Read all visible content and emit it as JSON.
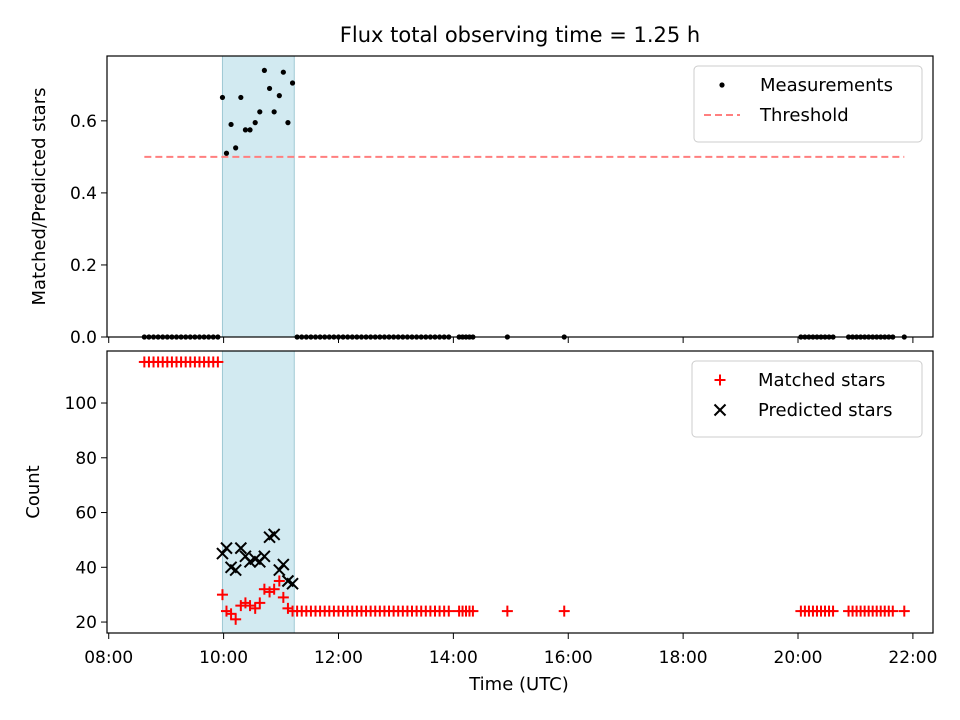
{
  "chart_data": {
    "title": "Flux total observing time = 1.25 h",
    "xlabel": "Time (UTC)",
    "x_ticks": [
      "08:00",
      "10:00",
      "12:00",
      "14:00",
      "16:00",
      "18:00",
      "20:00",
      "22:00"
    ],
    "x_tick_values_h": [
      8,
      10,
      12,
      14,
      16,
      18,
      20,
      22
    ],
    "xlim_h": [
      7.97,
      22.35
    ],
    "observing_window_h": [
      9.98,
      11.23
    ],
    "colors": {
      "window": "#add8e6",
      "threshold": "#ff7f7f",
      "matched": "#ff0000",
      "predicted": "#000000",
      "measurements": "#000000"
    },
    "panels": [
      {
        "type": "scatter",
        "ylabel": "Matched/Predicted stars",
        "ylim": [
          0,
          0.78
        ],
        "y_ticks": [
          "0.0",
          "0.2",
          "0.4",
          "0.6"
        ],
        "y_tick_values": [
          0,
          0.2,
          0.4,
          0.6
        ],
        "legend": {
          "placement": "top-right",
          "entries": [
            "Measurements",
            "Threshold"
          ]
        },
        "threshold": {
          "name": "Threshold",
          "value": 0.5,
          "x_range_h": [
            8.62,
            21.85
          ]
        },
        "series": [
          {
            "name": "Measurements",
            "marker": "dot",
            "x_h": [
              8.62,
              8.7,
              8.78,
              8.86,
              8.94,
              9.02,
              9.1,
              9.18,
              9.26,
              9.34,
              9.42,
              9.5,
              9.58,
              9.66,
              9.74,
              9.82,
              9.9,
              9.98,
              10.05,
              10.13,
              10.21,
              10.3,
              10.38,
              10.46,
              10.55,
              10.63,
              10.71,
              10.8,
              10.88,
              10.97,
              11.04,
              11.12,
              11.2,
              11.28,
              11.36,
              11.44,
              11.52,
              11.6,
              11.68,
              11.76,
              11.84,
              11.92,
              12.0,
              12.08,
              12.16,
              12.24,
              12.32,
              12.4,
              12.48,
              12.56,
              12.64,
              12.72,
              12.8,
              12.88,
              12.96,
              13.04,
              13.12,
              13.2,
              13.28,
              13.36,
              13.44,
              13.52,
              13.6,
              13.68,
              13.76,
              13.84,
              13.92,
              14.1,
              14.16,
              14.22,
              14.28,
              14.34,
              14.94,
              15.93,
              20.05,
              20.12,
              20.19,
              20.26,
              20.33,
              20.4,
              20.47,
              20.54,
              20.61,
              20.88,
              20.95,
              21.02,
              21.09,
              21.16,
              21.23,
              21.3,
              21.37,
              21.44,
              21.51,
              21.58,
              21.65,
              21.85
            ],
            "y": [
              0,
              0,
              0,
              0,
              0,
              0,
              0,
              0,
              0,
              0,
              0,
              0,
              0,
              0,
              0,
              0,
              0,
              0.665,
              0.51,
              0.59,
              0.525,
              0.665,
              0.575,
              0.575,
              0.595,
              0.625,
              0.74,
              0.69,
              0.625,
              0.67,
              0.735,
              0.595,
              0.705,
              0,
              0,
              0,
              0,
              0,
              0,
              0,
              0,
              0,
              0,
              0,
              0,
              0,
              0,
              0,
              0,
              0,
              0,
              0,
              0,
              0,
              0,
              0,
              0,
              0,
              0,
              0,
              0,
              0,
              0,
              0,
              0,
              0,
              0,
              0,
              0,
              0,
              0,
              0,
              0,
              0,
              0,
              0,
              0,
              0,
              0,
              0,
              0,
              0,
              0,
              0,
              0,
              0,
              0,
              0,
              0,
              0,
              0,
              0,
              0,
              0,
              0,
              0
            ]
          }
        ]
      },
      {
        "type": "scatter",
        "ylabel": "Count",
        "ylim": [
          16,
          119
        ],
        "y_ticks": [
          "20",
          "40",
          "60",
          "80",
          "100"
        ],
        "y_tick_values": [
          20,
          40,
          60,
          80,
          100
        ],
        "legend": {
          "placement": "top-right",
          "entries": [
            "Matched stars",
            "Predicted stars"
          ]
        },
        "series": [
          {
            "name": "Matched stars",
            "marker": "plus",
            "x_h": [
              8.62,
              8.7,
              8.78,
              8.86,
              8.94,
              9.02,
              9.1,
              9.18,
              9.26,
              9.34,
              9.42,
              9.5,
              9.58,
              9.66,
              9.74,
              9.82,
              9.9,
              9.98,
              10.05,
              10.13,
              10.21,
              10.3,
              10.38,
              10.46,
              10.55,
              10.63,
              10.71,
              10.8,
              10.88,
              10.97,
              11.04,
              11.12,
              11.2,
              11.28,
              11.36,
              11.44,
              11.52,
              11.6,
              11.68,
              11.76,
              11.84,
              11.92,
              12.0,
              12.08,
              12.16,
              12.24,
              12.32,
              12.4,
              12.48,
              12.56,
              12.64,
              12.72,
              12.8,
              12.88,
              12.96,
              13.04,
              13.12,
              13.2,
              13.28,
              13.36,
              13.44,
              13.52,
              13.6,
              13.68,
              13.76,
              13.84,
              13.92,
              14.1,
              14.16,
              14.22,
              14.28,
              14.34,
              14.94,
              15.93,
              20.05,
              20.12,
              20.19,
              20.26,
              20.33,
              20.4,
              20.47,
              20.54,
              20.61,
              20.88,
              20.95,
              21.02,
              21.09,
              21.16,
              21.23,
              21.3,
              21.37,
              21.44,
              21.51,
              21.58,
              21.65,
              21.85
            ],
            "y": [
              115,
              115,
              115,
              115,
              115,
              115,
              115,
              115,
              115,
              115,
              115,
              115,
              115,
              115,
              115,
              115,
              115,
              30,
              24,
              23,
              21,
              26,
              27,
              26,
              25,
              27,
              32,
              31,
              32,
              35,
              29,
              25,
              24,
              24,
              24,
              24,
              24,
              24,
              24,
              24,
              24,
              24,
              24,
              24,
              24,
              24,
              24,
              24,
              24,
              24,
              24,
              24,
              24,
              24,
              24,
              24,
              24,
              24,
              24,
              24,
              24,
              24,
              24,
              24,
              24,
              24,
              24,
              24,
              24,
              24,
              24,
              24,
              24,
              24,
              24,
              24,
              24,
              24,
              24,
              24,
              24,
              24,
              24,
              24,
              24,
              24,
              24,
              24,
              24,
              24,
              24,
              24,
              24,
              24,
              24,
              24
            ]
          },
          {
            "name": "Predicted stars",
            "marker": "x",
            "x_h": [
              9.98,
              10.05,
              10.13,
              10.21,
              10.3,
              10.38,
              10.46,
              10.55,
              10.63,
              10.71,
              10.8,
              10.88,
              10.97,
              11.04,
              11.12,
              11.2
            ],
            "y": [
              45,
              47,
              40,
              39,
              47,
              44,
              42,
              43,
              42,
              44,
              51,
              52,
              39,
              41,
              35,
              34
            ]
          }
        ]
      }
    ]
  }
}
